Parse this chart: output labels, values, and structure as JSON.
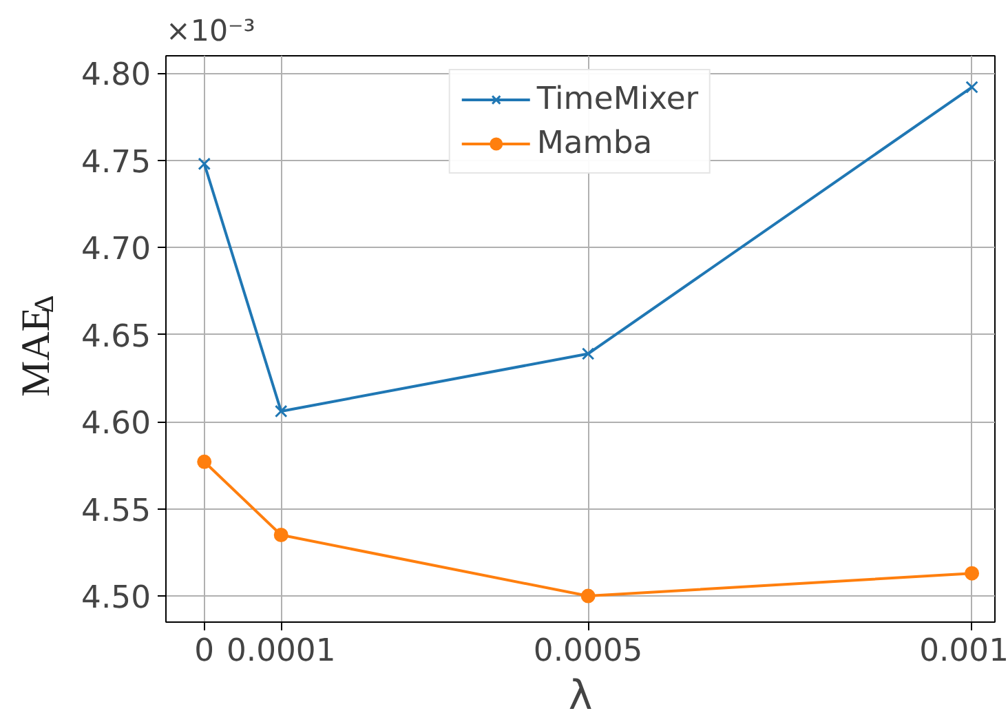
{
  "chart_data": {
    "type": "line",
    "xlabel": "λ",
    "ylabel": "MAE$_{Δ}$",
    "annotations": [
      "×10⁻³"
    ],
    "x": [
      0,
      0.0001,
      0.0005,
      0.001
    ],
    "series": [
      {
        "name": "TimeMixer",
        "color": "#1f77b4",
        "marker": "cross",
        "values": [
          4.748,
          4.606,
          4.639,
          4.792
        ]
      },
      {
        "name": "Mamba",
        "color": "#ff7f0e",
        "marker": "circle",
        "values": [
          4.577,
          4.535,
          4.5,
          4.513
        ]
      }
    ],
    "xlim": [
      -5e-05,
      0.00103
    ],
    "ylim": [
      4.485,
      4.81
    ],
    "xticks": [
      0,
      0.0001,
      0.0005,
      0.001
    ],
    "yticks": [
      {
        "value": 4.5,
        "label": "4.50"
      },
      {
        "value": 4.55,
        "label": "4.55"
      },
      {
        "value": 4.6,
        "label": "4.60"
      },
      {
        "value": 4.65,
        "label": "4.65"
      },
      {
        "value": 4.7,
        "label": "4.70"
      },
      {
        "value": 4.75,
        "label": "4.75"
      },
      {
        "value": 4.8,
        "label": "4.80"
      }
    ],
    "grid": true,
    "legend": "top",
    "line_style": "solid"
  }
}
